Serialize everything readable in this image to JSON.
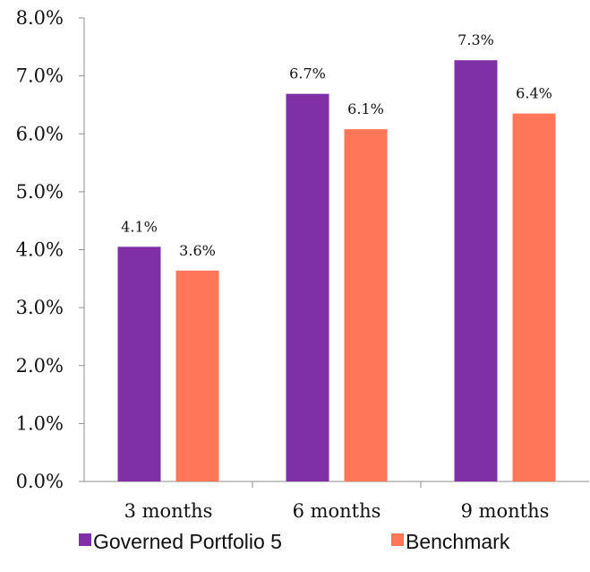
{
  "chart_data": {
    "type": "bar",
    "categories": [
      "3 months",
      "6 months",
      "9 months"
    ],
    "series": [
      {
        "name": "Governed Portfolio 5",
        "color": "#7F30A7",
        "values": [
          4.05,
          6.69,
          7.27
        ],
        "labels": [
          "4.1%",
          "6.7%",
          "7.3%"
        ]
      },
      {
        "name": "Benchmark",
        "color": "#FF7758",
        "values": [
          3.64,
          6.08,
          6.35
        ],
        "labels": [
          "3.6%",
          "6.1%",
          "6.4%"
        ]
      }
    ],
    "ylim": [
      0,
      8
    ],
    "yticks": [
      0,
      1,
      2,
      3,
      4,
      5,
      6,
      7,
      8
    ],
    "ytick_labels": [
      "0.0%",
      "1.0%",
      "2.0%",
      "3.0%",
      "4.0%",
      "5.0%",
      "6.0%",
      "7.0%",
      "8.0%"
    ],
    "grid": false,
    "legend_position": "bottom"
  }
}
